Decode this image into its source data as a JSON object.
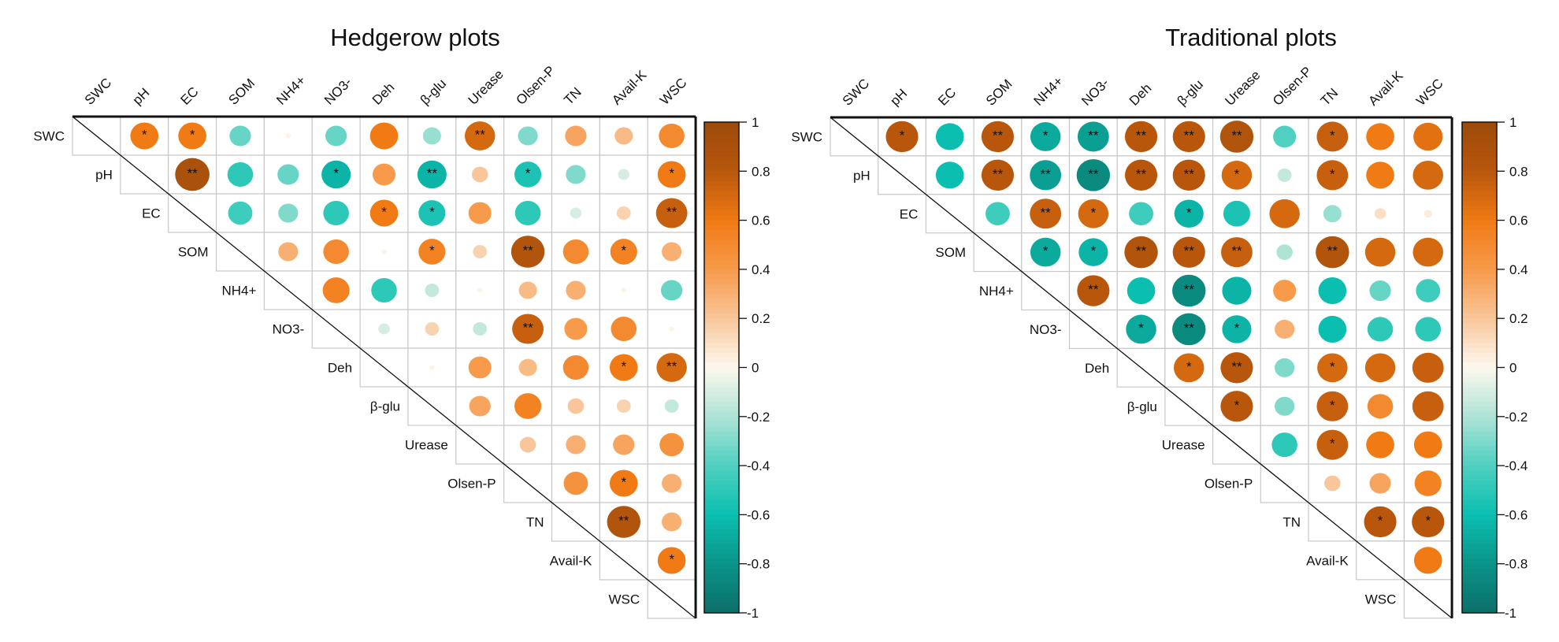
{
  "chart_data": [
    {
      "type": "heatmap",
      "subtype": "correlation-circles-upper-triangle",
      "title": "Hedgerow plots",
      "variables": [
        "SWC",
        "pH",
        "EC",
        "SOM",
        "NH4+",
        "NO3-",
        "Deh",
        "β-glu",
        "Urease",
        "Olsen-P",
        "TN",
        "Avail-K",
        "WSC"
      ],
      "values": [
        [
          0.6,
          0.6,
          -0.35,
          0.02,
          -0.35,
          0.6,
          -0.25,
          0.7,
          -0.3,
          0.35,
          0.25,
          0.5
        ],
        [
          0.9,
          -0.5,
          -0.35,
          -0.65,
          0.4,
          -0.65,
          0.2,
          -0.55,
          -0.3,
          -0.1,
          0.6
        ],
        [
          -0.45,
          -0.3,
          -0.5,
          0.6,
          -0.55,
          0.4,
          -0.5,
          -0.1,
          0.15,
          0.75
        ],
        [
          0.3,
          0.5,
          0.02,
          0.55,
          0.15,
          0.85,
          0.5,
          0.55,
          0.3
        ],
        [
          0.55,
          -0.5,
          -0.15,
          0.02,
          0.25,
          0.3,
          0.02,
          -0.35
        ],
        [
          -0.1,
          0.15,
          -0.15,
          0.75,
          0.4,
          0.5,
          0.02
        ],
        [
          0.02,
          0.4,
          0.25,
          0.5,
          0.6,
          0.7
        ],
        [
          0.35,
          0.55,
          0.2,
          0.15,
          -0.15
        ],
        [
          0.2,
          0.3,
          0.35,
          0.45
        ],
        [
          0.45,
          0.6,
          0.3
        ],
        [
          0.85,
          0.3
        ],
        [
          0.6
        ]
      ],
      "significance": [
        [
          "*",
          "*",
          "",
          "",
          "",
          "",
          "",
          "**",
          "",
          "",
          "",
          ""
        ],
        [
          "**",
          "",
          "",
          "*",
          "",
          "**",
          "",
          "*",
          "",
          "",
          "*"
        ],
        [
          "",
          "",
          "",
          "*",
          "*",
          "",
          "",
          "",
          "",
          "**"
        ],
        [
          "",
          "",
          "",
          "*",
          "",
          "**",
          "",
          "*",
          ""
        ],
        [
          "",
          "",
          "",
          "",
          "",
          "",
          "",
          ""
        ],
        [
          "",
          "",
          "",
          "**",
          "",
          "",
          ""
        ],
        [
          "",
          "",
          "",
          "",
          "*",
          "**"
        ],
        [
          "",
          "",
          "",
          "",
          ""
        ],
        [
          "",
          "",
          "",
          ""
        ],
        [
          "",
          "*",
          ""
        ],
        [
          "**",
          ""
        ],
        [
          "*"
        ]
      ],
      "colorbar": {
        "ticks": [
          "1",
          "0.8",
          "0.6",
          "0.4",
          "0.2",
          "0",
          "-0.2",
          "-0.4",
          "-0.6",
          "-0.8",
          "-1"
        ],
        "range": [
          -1,
          1
        ]
      }
    },
    {
      "type": "heatmap",
      "subtype": "correlation-circles-upper-triangle",
      "title": "Traditional plots",
      "variables": [
        "SWC",
        "pH",
        "EC",
        "SOM",
        "NH4+",
        "NO3-",
        "Deh",
        "β-glu",
        "Urease",
        "Olsen-P",
        "TN",
        "Avail-K",
        "WSC"
      ],
      "values": [
        [
          0.8,
          -0.6,
          0.8,
          -0.7,
          -0.75,
          0.8,
          0.8,
          0.85,
          -0.4,
          0.75,
          0.6,
          0.65
        ],
        [
          -0.6,
          0.8,
          -0.75,
          -0.85,
          0.8,
          0.8,
          0.7,
          -0.15,
          0.75,
          0.6,
          0.7
        ],
        [
          -0.45,
          0.75,
          0.7,
          -0.45,
          -0.65,
          -0.55,
          0.7,
          -0.25,
          0.1,
          0.05
        ],
        [
          -0.7,
          -0.65,
          0.85,
          0.8,
          0.75,
          -0.2,
          0.85,
          0.7,
          0.7
        ],
        [
          0.8,
          -0.6,
          -0.85,
          -0.65,
          0.4,
          -0.6,
          -0.35,
          -0.45
        ],
        [
          -0.7,
          -0.85,
          -0.65,
          0.3,
          -0.6,
          -0.5,
          -0.5
        ],
        [
          0.7,
          0.8,
          -0.3,
          0.7,
          0.7,
          0.75
        ],
        [
          0.8,
          -0.3,
          0.75,
          0.5,
          0.75
        ],
        [
          -0.5,
          0.75,
          0.6,
          0.6
        ],
        [
          0.2,
          0.35,
          0.55
        ],
        [
          0.8,
          0.8
        ],
        [
          0.6
        ]
      ],
      "significance": [
        [
          "*",
          "",
          "**",
          "*",
          "**",
          "**",
          "**",
          "**",
          "",
          "*",
          "",
          ""
        ],
        [
          "",
          "**",
          "**",
          "**",
          "**",
          "**",
          "*",
          "",
          "*",
          "",
          ""
        ],
        [
          "",
          "**",
          "*",
          "",
          "*",
          "",
          "",
          "",
          "",
          ""
        ],
        [
          "*",
          "*",
          "**",
          "**",
          "**",
          "",
          "**",
          "",
          ""
        ],
        [
          "**",
          "",
          "**",
          "",
          "",
          "",
          "",
          ""
        ],
        [
          "*",
          "**",
          "*",
          "",
          "",
          "",
          ""
        ],
        [
          "*",
          "**",
          "",
          "*",
          "",
          ""
        ],
        [
          "*",
          "",
          "*",
          "",
          ""
        ],
        [
          "",
          "*",
          "",
          ""
        ],
        [
          "",
          "",
          ""
        ],
        [
          "*",
          "*"
        ],
        [
          ""
        ]
      ],
      "colorbar": {
        "ticks": [
          "1",
          "0.8",
          "0.6",
          "0.4",
          "0.2",
          "0",
          "-0.2",
          "-0.4",
          "-0.6",
          "-0.8",
          "-1"
        ],
        "range": [
          -1,
          1
        ]
      }
    }
  ],
  "colors": {
    "scale": [
      "#0c6f68",
      "#0a9488",
      "#0bbfb0",
      "#4fd0c0",
      "#aee4d6",
      "#fdf8ee",
      "#f8c69a",
      "#f79a4a",
      "#f07a14",
      "#b8570c",
      "#9c4a0a"
    ]
  }
}
